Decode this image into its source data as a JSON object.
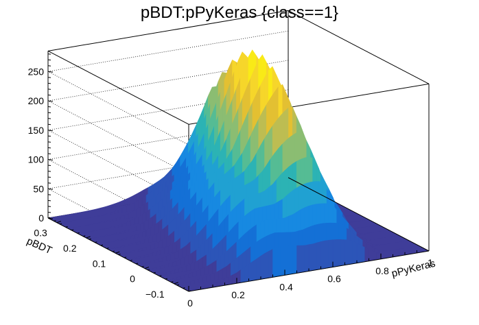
{
  "chart_data": {
    "type": "surface",
    "title": "pBDT:pPyKeras {class==1}",
    "xlabel": "pPyKeras",
    "ylabel": "pBDT",
    "zlabel": "",
    "xlim": [
      0,
      1
    ],
    "ylim": [
      -0.15,
      0.33
    ],
    "zlim": [
      0,
      285
    ],
    "x_ticks": [
      {
        "value": 0,
        "label": "0"
      },
      {
        "value": 0.2,
        "label": "0.2"
      },
      {
        "value": 0.4,
        "label": "0.4"
      },
      {
        "value": 0.6,
        "label": "0.6"
      },
      {
        "value": 0.8,
        "label": "0.8"
      },
      {
        "value": 1.0,
        "label": "1"
      }
    ],
    "y_ticks": [
      {
        "value": -0.1,
        "label": "−0.1"
      },
      {
        "value": 0,
        "label": "0"
      },
      {
        "value": 0.1,
        "label": "0.1"
      },
      {
        "value": 0.2,
        "label": "0.2"
      },
      {
        "value": 0.3,
        "label": "0.3"
      }
    ],
    "z_ticks": [
      {
        "value": 0,
        "label": "0"
      },
      {
        "value": 50,
        "label": "50"
      },
      {
        "value": 100,
        "label": "100"
      },
      {
        "value": 150,
        "label": "150"
      },
      {
        "value": 200,
        "label": "200"
      },
      {
        "value": 250,
        "label": "250"
      }
    ],
    "grid": true,
    "ridge": {
      "y_at": -0.15,
      "x": [
        0.0,
        0.04,
        0.08,
        0.12,
        0.16,
        0.2,
        0.24,
        0.28,
        0.32,
        0.36,
        0.4,
        0.44,
        0.48,
        0.52,
        0.56,
        0.6,
        0.64,
        0.68,
        0.72,
        0.76,
        0.8,
        0.84,
        0.88,
        0.92,
        0.96,
        1.0
      ],
      "z": [
        0,
        0,
        0,
        0,
        0,
        0,
        0,
        0,
        0,
        0,
        0,
        0,
        0,
        0,
        0,
        0,
        0,
        0,
        0,
        0,
        0,
        0,
        0,
        0,
        0,
        0
      ]
    },
    "profile_front": {
      "y": -0.15,
      "x": [
        0.0,
        0.05,
        0.1,
        0.15,
        0.2,
        0.25,
        0.3,
        0.35,
        0.4,
        0.45,
        0.5,
        0.55,
        0.6,
        0.65,
        0.7,
        0.75,
        0.8,
        0.85,
        0.9,
        0.95,
        1.0
      ],
      "z": [
        0,
        0,
        0,
        0,
        0,
        0,
        0,
        0,
        0,
        0,
        0,
        0,
        0,
        0,
        0,
        0,
        0,
        0,
        0,
        0,
        0
      ]
    },
    "profile_max": {
      "y": 0.33,
      "x": [
        0.0,
        0.04,
        0.08,
        0.12,
        0.16,
        0.2,
        0.24,
        0.28,
        0.32,
        0.36,
        0.4,
        0.44,
        0.48,
        0.52,
        0.56,
        0.6,
        0.64,
        0.68,
        0.72,
        0.76,
        0.8,
        0.84,
        0.88,
        0.92,
        0.96,
        1.0
      ],
      "z": [
        2,
        4,
        6,
        9,
        14,
        22,
        35,
        50,
        68,
        85,
        100,
        108,
        118,
        140,
        175,
        210,
        245,
        280,
        250,
        205,
        120,
        40,
        10,
        3,
        1,
        0
      ]
    },
    "color_bands": [
      "#3f3d99",
      "#2c55b8",
      "#1470d6",
      "#1789e1",
      "#20a1d2",
      "#2cb3b4",
      "#55bc94",
      "#8bbd72",
      "#bdbd52",
      "#e3c032",
      "#f6d62a",
      "#f9ea17"
    ]
  }
}
